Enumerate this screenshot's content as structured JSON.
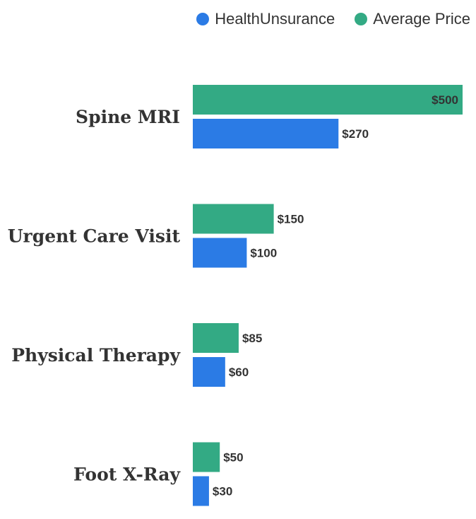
{
  "chart_data": {
    "type": "bar",
    "orientation": "horizontal",
    "categories": [
      "Spine MRI",
      "Urgent Care Visit",
      "Physical Therapy",
      "Foot X-Ray"
    ],
    "series": [
      {
        "name": "Average Price",
        "color": "#33aa84",
        "values": [
          500,
          150,
          85,
          50
        ],
        "labels": [
          "$500",
          "$150",
          "$85",
          "$50"
        ]
      },
      {
        "name": "HealthUnsurance",
        "color": "#2b7be5",
        "values": [
          270,
          100,
          60,
          30
        ],
        "labels": [
          "$270",
          "$100",
          "$60",
          "$30"
        ]
      }
    ],
    "legend": {
      "position": "top-right",
      "entries": [
        {
          "name": "HealthUnsurance",
          "color": "#2b7be5"
        },
        {
          "name": "Average Price",
          "color": "#33aa84"
        }
      ]
    },
    "xlim": [
      0,
      500
    ],
    "grid": false,
    "title": "",
    "xlabel": "",
    "ylabel": ""
  }
}
